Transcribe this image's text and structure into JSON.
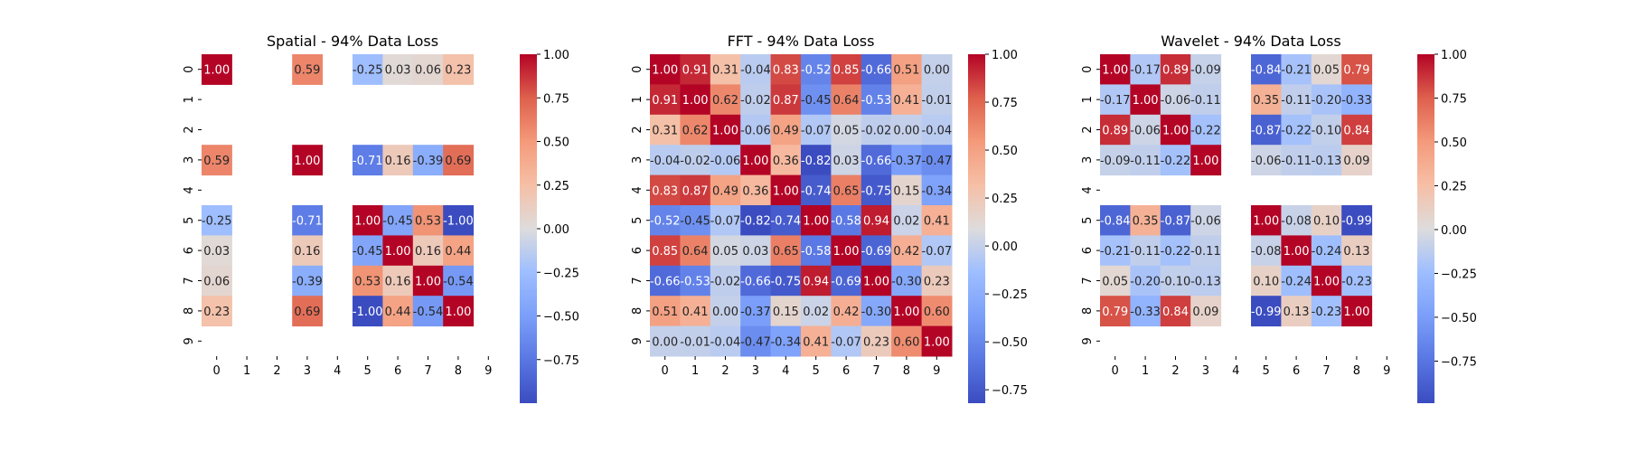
{
  "chart_data": [
    {
      "type": "heatmap",
      "title": "Spatial - 94% Data Loss",
      "x_ticks": [
        "0",
        "1",
        "2",
        "3",
        "4",
        "5",
        "6",
        "7",
        "8",
        "9"
      ],
      "y_ticks": [
        "0",
        "1",
        "2",
        "3",
        "4",
        "5",
        "6",
        "7",
        "8",
        "9"
      ],
      "colorbar_ticks": [
        "1.00",
        "0.75",
        "0.50",
        "0.25",
        "0.00",
        "−0.25",
        "−0.50",
        "−0.75"
      ],
      "colorbar_range": [
        -1.0,
        1.0
      ],
      "colormap": "coolwarm",
      "matrix": [
        [
          1.0,
          null,
          null,
          0.59,
          null,
          -0.25,
          0.03,
          0.06,
          0.23,
          null
        ],
        [
          null,
          null,
          null,
          null,
          null,
          null,
          null,
          null,
          null,
          null
        ],
        [
          null,
          null,
          null,
          null,
          null,
          null,
          null,
          null,
          null,
          null
        ],
        [
          0.59,
          null,
          null,
          1.0,
          null,
          -0.71,
          0.16,
          -0.39,
          0.69,
          null
        ],
        [
          null,
          null,
          null,
          null,
          null,
          null,
          null,
          null,
          null,
          null
        ],
        [
          -0.25,
          null,
          null,
          -0.71,
          null,
          1.0,
          -0.45,
          0.53,
          -1.0,
          null
        ],
        [
          0.03,
          null,
          null,
          0.16,
          null,
          -0.45,
          1.0,
          0.16,
          0.44,
          null
        ],
        [
          0.06,
          null,
          null,
          -0.39,
          null,
          0.53,
          0.16,
          1.0,
          -0.54,
          null
        ],
        [
          0.23,
          null,
          null,
          0.69,
          null,
          -1.0,
          0.44,
          -0.54,
          1.0,
          null
        ],
        [
          null,
          null,
          null,
          null,
          null,
          null,
          null,
          null,
          null,
          null
        ]
      ]
    },
    {
      "type": "heatmap",
      "title": "FFT - 94% Data Loss",
      "x_ticks": [
        "0",
        "1",
        "2",
        "3",
        "4",
        "5",
        "6",
        "7",
        "8",
        "9"
      ],
      "y_ticks": [
        "0",
        "1",
        "2",
        "3",
        "4",
        "5",
        "6",
        "7",
        "8",
        "9"
      ],
      "colorbar_ticks": [
        "1.00",
        "0.75",
        "0.50",
        "0.25",
        "0.00",
        "−0.25",
        "−0.50",
        "−0.75"
      ],
      "colorbar_range": [
        -0.82,
        1.0
      ],
      "colormap": "coolwarm",
      "matrix": [
        [
          1.0,
          0.91,
          0.31,
          -0.04,
          0.83,
          -0.52,
          0.85,
          -0.66,
          0.51,
          -0.0
        ],
        [
          0.91,
          1.0,
          0.62,
          -0.02,
          0.87,
          -0.45,
          0.64,
          -0.53,
          0.41,
          -0.01
        ],
        [
          0.31,
          0.62,
          1.0,
          -0.06,
          0.49,
          -0.07,
          0.05,
          -0.02,
          -0.0,
          -0.04
        ],
        [
          -0.04,
          -0.02,
          -0.06,
          1.0,
          0.36,
          -0.82,
          0.03,
          -0.66,
          -0.37,
          -0.47
        ],
        [
          0.83,
          0.87,
          0.49,
          0.36,
          1.0,
          -0.74,
          0.65,
          -0.75,
          0.15,
          -0.34
        ],
        [
          -0.52,
          -0.45,
          -0.07,
          -0.82,
          -0.74,
          1.0,
          -0.58,
          0.94,
          0.02,
          0.41
        ],
        [
          0.85,
          0.64,
          0.05,
          0.03,
          0.65,
          -0.58,
          1.0,
          -0.69,
          0.42,
          -0.07
        ],
        [
          -0.66,
          -0.53,
          -0.02,
          -0.66,
          -0.75,
          0.94,
          -0.69,
          1.0,
          -0.3,
          0.23
        ],
        [
          0.51,
          0.41,
          -0.0,
          -0.37,
          0.15,
          0.02,
          0.42,
          -0.3,
          1.0,
          0.6
        ],
        [
          -0.0,
          -0.01,
          -0.04,
          -0.47,
          -0.34,
          0.41,
          -0.07,
          0.23,
          0.6,
          1.0
        ]
      ]
    },
    {
      "type": "heatmap",
      "title": "Wavelet - 94% Data Loss",
      "x_ticks": [
        "0",
        "1",
        "2",
        "3",
        "4",
        "5",
        "6",
        "7",
        "8",
        "9"
      ],
      "y_ticks": [
        "0",
        "1",
        "2",
        "3",
        "4",
        "5",
        "6",
        "7",
        "8",
        "9"
      ],
      "colorbar_ticks": [
        "1.00",
        "0.75",
        "0.50",
        "0.25",
        "0.00",
        "−0.25",
        "−0.50",
        "−0.75"
      ],
      "colorbar_range": [
        -0.99,
        1.0
      ],
      "colormap": "coolwarm",
      "matrix": [
        [
          1.0,
          -0.17,
          0.89,
          -0.09,
          null,
          -0.84,
          -0.21,
          0.05,
          0.79,
          null
        ],
        [
          -0.17,
          1.0,
          -0.06,
          -0.11,
          null,
          0.35,
          -0.11,
          -0.2,
          -0.33,
          null
        ],
        [
          0.89,
          -0.06,
          1.0,
          -0.22,
          null,
          -0.87,
          -0.22,
          -0.1,
          0.84,
          null
        ],
        [
          -0.09,
          -0.11,
          -0.22,
          1.0,
          null,
          -0.06,
          -0.11,
          -0.13,
          0.09,
          null
        ],
        [
          null,
          null,
          null,
          null,
          null,
          null,
          null,
          null,
          null,
          null
        ],
        [
          -0.84,
          0.35,
          -0.87,
          -0.06,
          null,
          1.0,
          -0.08,
          0.1,
          -0.99,
          null
        ],
        [
          -0.21,
          -0.11,
          -0.22,
          -0.11,
          null,
          -0.08,
          1.0,
          -0.24,
          0.13,
          null
        ],
        [
          0.05,
          -0.2,
          -0.1,
          -0.13,
          null,
          0.1,
          -0.24,
          1.0,
          -0.23,
          null
        ],
        [
          0.79,
          -0.33,
          0.84,
          0.09,
          null,
          -0.99,
          0.13,
          -0.23,
          1.0,
          null
        ],
        [
          null,
          null,
          null,
          null,
          null,
          null,
          null,
          null,
          null,
          null
        ]
      ]
    }
  ]
}
